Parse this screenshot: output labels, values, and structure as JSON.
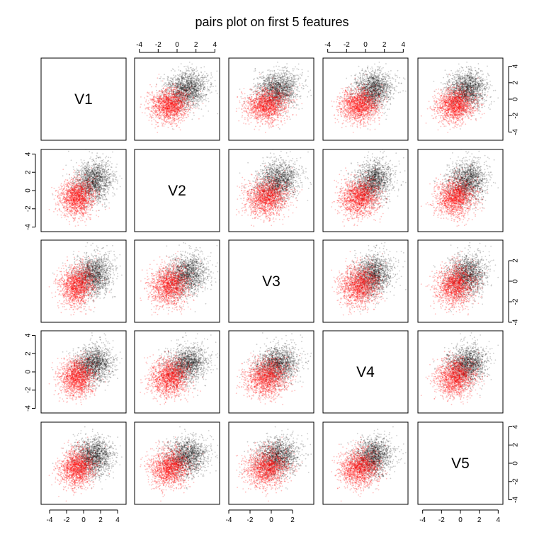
{
  "chart_data": {
    "type": "scatter",
    "title": "pairs plot on first 5 features",
    "variables": [
      "V1",
      "V2",
      "V3",
      "V4",
      "V5"
    ],
    "series": [
      {
        "name": "",
        "color": "#000000",
        "opacity": 0.2,
        "mean": [
          1.2,
          1.0,
          0.6,
          0.8,
          0.7
        ],
        "sd": [
          1.1,
          1.1,
          1.0,
          1.0,
          1.0
        ],
        "n": 1600
      },
      {
        "name": "",
        "color": "#ff0000",
        "opacity": 0.25,
        "mean": [
          -0.8,
          -0.8,
          -0.4,
          -0.6,
          -0.5
        ],
        "sd": [
          1.0,
          1.0,
          1.0,
          1.0,
          1.0
        ],
        "n": 1600
      }
    ],
    "axis_ranges": {
      "V1": [
        -5,
        5
      ],
      "V2": [
        -4.5,
        4.5
      ],
      "V3": [
        -4,
        4
      ],
      "V4": [
        -4.5,
        4.5
      ],
      "V5": [
        -4.5,
        4.5
      ]
    },
    "tick_labels": {
      "V1": [
        "-4",
        "-2",
        "0",
        "2",
        "4"
      ],
      "V2": [
        "-4",
        "-2",
        "0",
        "2",
        "4"
      ],
      "V3": [
        "-4",
        "-2",
        "0",
        "2"
      ],
      "V4": [
        "-4",
        "-2",
        "0",
        "2",
        "4"
      ],
      "V5": [
        "-4",
        "-2",
        "0",
        "2",
        "4"
      ]
    },
    "tick_values": {
      "V1": [
        -4,
        -2,
        0,
        2,
        4
      ],
      "V2": [
        -4,
        -2,
        0,
        2,
        4
      ],
      "V3": [
        -4,
        -2,
        0,
        2
      ],
      "V4": [
        -4,
        -2,
        0,
        2,
        4
      ],
      "V5": [
        -4,
        -2,
        0,
        2,
        4
      ]
    },
    "grid": false,
    "legend": "none"
  }
}
